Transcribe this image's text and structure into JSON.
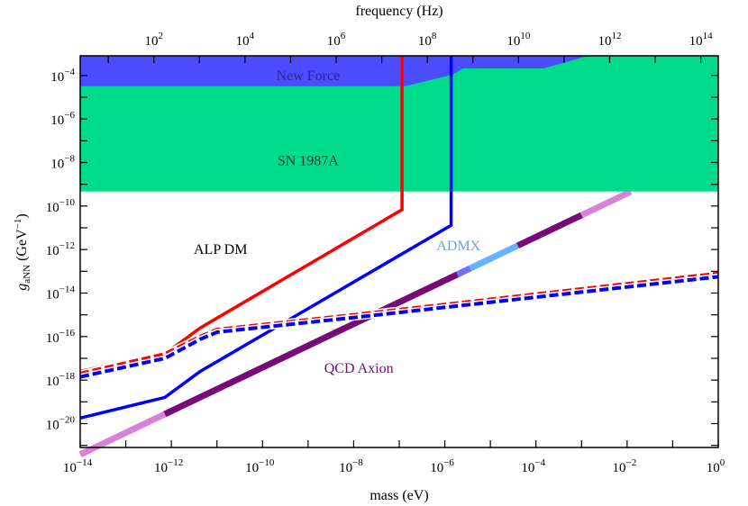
{
  "chart_data": {
    "type": "line",
    "xlabel": "mass (eV)",
    "ylabel_main": "g",
    "ylabel_sub": "aNN",
    "ylabel_unit": " (GeV",
    "ylabel_unit_exp": "−1",
    "ylabel_unit_close": ")",
    "top_xlabel": "frequency (Hz)",
    "x_scale": "log",
    "y_scale": "log",
    "xlim": [
      1e-14,
      1
    ],
    "ylim": [
      8e-22,
      0.0008
    ],
    "grid": false,
    "x_ticks": [
      {
        "value": 1e-14,
        "base": "10",
        "exp": "−14"
      },
      {
        "value": 1e-12,
        "base": "10",
        "exp": "−12"
      },
      {
        "value": 1e-10,
        "base": "10",
        "exp": "−10"
      },
      {
        "value": 1e-08,
        "base": "10",
        "exp": "−8"
      },
      {
        "value": 1e-06,
        "base": "10",
        "exp": "−6"
      },
      {
        "value": 0.0001,
        "base": "10",
        "exp": "−4"
      },
      {
        "value": 0.01,
        "base": "10",
        "exp": "−2"
      },
      {
        "value": 1,
        "base": "10",
        "exp": "0"
      }
    ],
    "y_ticks": [
      {
        "value": 0.0001,
        "base": "10",
        "exp": "−4"
      },
      {
        "value": 1e-06,
        "base": "10",
        "exp": "−6"
      },
      {
        "value": 1e-08,
        "base": "10",
        "exp": "−8"
      },
      {
        "value": 1e-10,
        "base": "10",
        "exp": "−10"
      },
      {
        "value": 1e-12,
        "base": "10",
        "exp": "−12"
      },
      {
        "value": 1e-14,
        "base": "10",
        "exp": "−14"
      },
      {
        "value": 1e-16,
        "base": "10",
        "exp": "−16"
      },
      {
        "value": 1e-18,
        "base": "10",
        "exp": "−18"
      },
      {
        "value": 1e-20,
        "base": "10",
        "exp": "−20"
      }
    ],
    "top_ticks": [
      {
        "value": 100.0,
        "base": "10",
        "exp": "2"
      },
      {
        "value": 10000.0,
        "base": "10",
        "exp": "4"
      },
      {
        "value": 1000000.0,
        "base": "10",
        "exp": "6"
      },
      {
        "value": 100000000.0,
        "base": "10",
        "exp": "8"
      },
      {
        "value": 10000000000.0,
        "base": "10",
        "exp": "10"
      },
      {
        "value": 1000000000000.0,
        "base": "10",
        "exp": "12"
      },
      {
        "value": 100000000000000.0,
        "base": "10",
        "exp": "14"
      }
    ],
    "regions": [
      {
        "label": "SN 1987A",
        "color": "#00db8c",
        "lower_bound": 4.7e-10
      },
      {
        "label": "New Force",
        "color": "#4b4bff",
        "boundary": [
          [
            1e-14,
            3.2e-05
          ],
          [
            1.35e-07,
            3.2e-05
          ],
          [
            1.5e-06,
            0.00011
          ],
          [
            2.5e-06,
            0.00021
          ],
          [
            0.000145,
            0.00021
          ],
          [
            0.0014,
            0.0008
          ]
        ]
      }
    ],
    "series": [
      {
        "style": "solid",
        "color": "#ff0000",
        "points": [
          [
            1e-14,
            2.5e-18
          ],
          [
            7.2e-13,
            1.6e-17
          ],
          [
            4.3e-12,
            2.5e-16
          ],
          [
            1.15e-07,
            6.8e-11
          ],
          [
            1.15e-07,
            0.0008
          ]
        ]
      },
      {
        "style": "solid",
        "color": "#0000ff",
        "points": [
          [
            1e-14,
            1.8e-20
          ],
          [
            7.2e-13,
            1.6e-19
          ],
          [
            4.3e-12,
            2.5e-18
          ],
          [
            1.38e-06,
            1.3e-11
          ],
          [
            1.38e-06,
            0.0008
          ]
        ]
      },
      {
        "style": "dashed",
        "color": "#ff0000",
        "points": [
          [
            1e-14,
            2e-18
          ],
          [
            7.2e-13,
            1.6e-17
          ],
          [
            4.3e-12,
            1e-16
          ],
          [
            1e-11,
            2.1e-16
          ],
          [
            1e-08,
            1e-15
          ],
          [
            1,
            8e-14
          ]
        ]
      },
      {
        "style": "dashed",
        "color": "#0000ff",
        "points": [
          [
            1e-14,
            1.4e-18
          ],
          [
            7.2e-13,
            1e-17
          ],
          [
            4.3e-12,
            7.5e-17
          ],
          [
            1e-11,
            1.6e-16
          ],
          [
            1e-08,
            7.5e-16
          ],
          [
            1,
            5.6e-14
          ]
        ]
      }
    ],
    "qcd_axion": {
      "label": "QCD Axion",
      "ratio": 3.8e-08,
      "segments": [
        {
          "from": 1e-14,
          "to": 7.2e-13,
          "color": "#d982d9"
        },
        {
          "from": 7.2e-13,
          "to": 1.9e-06,
          "color": "#760a76"
        },
        {
          "from": 1.9e-06,
          "to": 3.6e-06,
          "color": "#7070ff"
        },
        {
          "from": 3.6e-06,
          "to": 4e-05,
          "color": "#66b2ff"
        },
        {
          "from": 4e-05,
          "to": 0.001,
          "color": "#760a76"
        },
        {
          "from": 0.001,
          "to": 0.012,
          "color": "#d982d9"
        }
      ]
    },
    "annotations": [
      {
        "text": "New Force",
        "color": "#2a2a8a",
        "x": 1e-09,
        "y": 0.0001
      },
      {
        "text": "SN 1987A",
        "color": "#0b3d2a",
        "x": 1e-09,
        "y": 1.2e-08
      },
      {
        "text": "ALP DM",
        "color": "#000000",
        "x": 1.2e-11,
        "y": 1e-12
      },
      {
        "text": "ADMX",
        "color": "#6fa0f0",
        "x": 2e-06,
        "y": 1.5e-12
      },
      {
        "text": "QCD Axion",
        "color": "#760a76",
        "x": 1.3e-08,
        "y": 3.5e-18
      }
    ]
  }
}
